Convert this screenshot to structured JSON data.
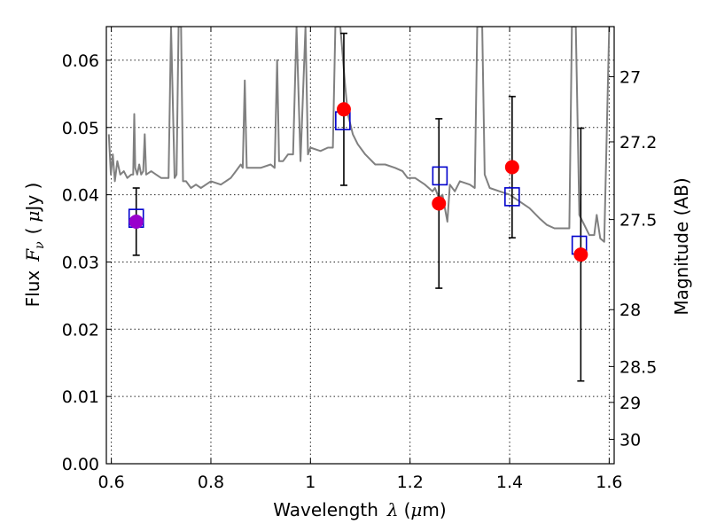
{
  "chart_data": {
    "type": "scatter",
    "xlabel": {
      "prefix": "Wavelength",
      "symbol": "λ",
      "unit_open": "(",
      "unit_symbol": "μ",
      "unit_rest": "m)"
    },
    "ylabel": {
      "prefix": "Flux",
      "symbol": "F",
      "subscript": "ν",
      "unit_open": "(",
      "unit_symbol": "μ",
      "unit_rest": "Jy )"
    },
    "y2label": "Magnitude (AB)",
    "xlim": [
      0.59,
      1.61
    ],
    "ylim": [
      0.0,
      0.065
    ],
    "xticks": [
      0.6,
      0.8,
      1.0,
      1.2,
      1.4,
      1.6
    ],
    "xtick_labels": [
      "0.6",
      "0.8",
      "1",
      "1.2",
      "1.4",
      "1.6"
    ],
    "yticks": [
      0.0,
      0.01,
      0.02,
      0.03,
      0.04,
      0.05,
      0.06
    ],
    "ytick_labels": [
      "0.00",
      "0.01",
      "0.02",
      "0.03",
      "0.04",
      "0.05",
      "0.06"
    ],
    "y2ticks": [
      {
        "mag": 27,
        "label": "27"
      },
      {
        "mag": 27.2,
        "label": "27.2"
      },
      {
        "mag": 27.5,
        "label": "27.5"
      },
      {
        "mag": 28,
        "label": "28"
      },
      {
        "mag": 28.5,
        "label": "28.5"
      },
      {
        "mag": 29,
        "label": "29"
      },
      {
        "mag": 30,
        "label": "30"
      }
    ],
    "grid": true,
    "series": [
      {
        "kind": "spectrum",
        "color": "#808080",
        "points": [
          [
            0.595,
            0.049
          ],
          [
            0.599,
            0.043
          ],
          [
            0.603,
            0.046
          ],
          [
            0.607,
            0.042
          ],
          [
            0.612,
            0.045
          ],
          [
            0.618,
            0.043
          ],
          [
            0.625,
            0.0435
          ],
          [
            0.632,
            0.0425
          ],
          [
            0.64,
            0.043
          ],
          [
            0.644,
            0.043
          ],
          [
            0.646,
            0.052
          ],
          [
            0.648,
            0.044
          ],
          [
            0.652,
            0.043
          ],
          [
            0.656,
            0.0445
          ],
          [
            0.66,
            0.043
          ],
          [
            0.664,
            0.0435
          ],
          [
            0.667,
            0.049
          ],
          [
            0.67,
            0.043
          ],
          [
            0.68,
            0.0435
          ],
          [
            0.69,
            0.043
          ],
          [
            0.7,
            0.0425
          ],
          [
            0.715,
            0.0425
          ],
          [
            0.72,
            0.065
          ],
          [
            0.727,
            0.0425
          ],
          [
            0.731,
            0.043
          ],
          [
            0.735,
            0.065
          ],
          [
            0.74,
            0.065
          ],
          [
            0.744,
            0.042
          ],
          [
            0.75,
            0.042
          ],
          [
            0.76,
            0.041
          ],
          [
            0.77,
            0.0415
          ],
          [
            0.78,
            0.041
          ],
          [
            0.79,
            0.0415
          ],
          [
            0.8,
            0.042
          ],
          [
            0.82,
            0.0415
          ],
          [
            0.84,
            0.0425
          ],
          [
            0.85,
            0.0435
          ],
          [
            0.86,
            0.0445
          ],
          [
            0.864,
            0.044
          ],
          [
            0.868,
            0.057
          ],
          [
            0.872,
            0.044
          ],
          [
            0.88,
            0.044
          ],
          [
            0.9,
            0.044
          ],
          [
            0.92,
            0.0445
          ],
          [
            0.928,
            0.044
          ],
          [
            0.933,
            0.06
          ],
          [
            0.937,
            0.045
          ],
          [
            0.945,
            0.045
          ],
          [
            0.955,
            0.046
          ],
          [
            0.965,
            0.046
          ],
          [
            0.972,
            0.065
          ],
          [
            0.98,
            0.045
          ],
          [
            0.99,
            0.065
          ],
          [
            0.995,
            0.046
          ],
          [
            1.0,
            0.047
          ],
          [
            1.02,
            0.0465
          ],
          [
            1.035,
            0.047
          ],
          [
            1.045,
            0.047
          ],
          [
            1.05,
            0.065
          ],
          [
            1.06,
            0.065
          ],
          [
            1.07,
            0.056
          ],
          [
            1.075,
            0.052
          ],
          [
            1.085,
            0.049
          ],
          [
            1.095,
            0.0475
          ],
          [
            1.11,
            0.046
          ],
          [
            1.13,
            0.0445
          ],
          [
            1.15,
            0.0445
          ],
          [
            1.17,
            0.044
          ],
          [
            1.185,
            0.0435
          ],
          [
            1.195,
            0.0425
          ],
          [
            1.21,
            0.0425
          ],
          [
            1.23,
            0.0415
          ],
          [
            1.245,
            0.0405
          ],
          [
            1.25,
            0.041
          ],
          [
            1.258,
            0.0395
          ],
          [
            1.265,
            0.04
          ],
          [
            1.27,
            0.038
          ],
          [
            1.275,
            0.036
          ],
          [
            1.28,
            0.0415
          ],
          [
            1.29,
            0.0405
          ],
          [
            1.3,
            0.042
          ],
          [
            1.32,
            0.0415
          ],
          [
            1.33,
            0.041
          ],
          [
            1.335,
            0.065
          ],
          [
            1.345,
            0.065
          ],
          [
            1.35,
            0.043
          ],
          [
            1.36,
            0.041
          ],
          [
            1.38,
            0.0405
          ],
          [
            1.4,
            0.04
          ],
          [
            1.42,
            0.039
          ],
          [
            1.44,
            0.038
          ],
          [
            1.46,
            0.0365
          ],
          [
            1.475,
            0.0355
          ],
          [
            1.49,
            0.035
          ],
          [
            1.51,
            0.035
          ],
          [
            1.52,
            0.035
          ],
          [
            1.525,
            0.065
          ],
          [
            1.533,
            0.065
          ],
          [
            1.54,
            0.037
          ],
          [
            1.55,
            0.0355
          ],
          [
            1.56,
            0.034
          ],
          [
            1.57,
            0.034
          ],
          [
            1.575,
            0.037
          ],
          [
            1.582,
            0.0335
          ],
          [
            1.59,
            0.033
          ],
          [
            1.6,
            0.065
          ]
        ]
      },
      {
        "kind": "observed",
        "color": "#000000",
        "points": [
          {
            "x": 0.65,
            "y": 0.036,
            "yerr": 0.005
          },
          {
            "x": 1.067,
            "y": 0.0527,
            "yerr": 0.0113
          },
          {
            "x": 1.258,
            "y": 0.0387,
            "yerr": 0.0126
          },
          {
            "x": 1.405,
            "y": 0.0441,
            "yerr": 0.0105
          },
          {
            "x": 1.543,
            "y": 0.0311,
            "yerr": 0.0188
          }
        ]
      },
      {
        "kind": "model",
        "color": "#0000cc",
        "points": [
          {
            "x": 0.65,
            "y": 0.0365
          },
          {
            "x": 1.065,
            "y": 0.051
          },
          {
            "x": 1.26,
            "y": 0.0428
          },
          {
            "x": 1.405,
            "y": 0.0397
          },
          {
            "x": 1.54,
            "y": 0.0325
          }
        ]
      }
    ],
    "colors": {
      "observed_fill": "#ff0000",
      "first_point_fill": "#9900cc",
      "model_stroke": "#0000cc",
      "spectrum": "#808080"
    }
  }
}
